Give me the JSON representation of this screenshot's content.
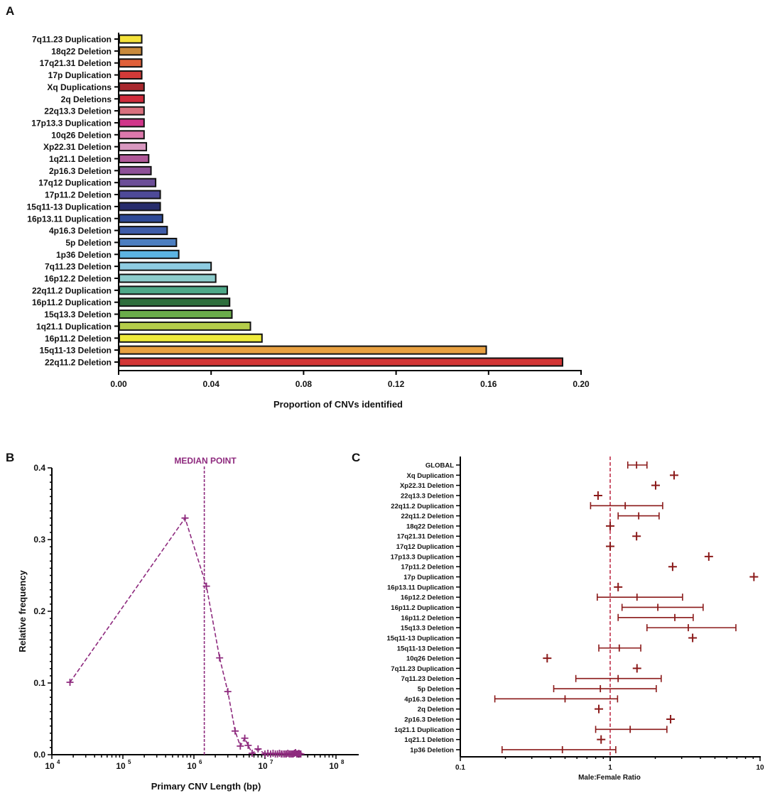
{
  "chart_data": [
    {
      "panel": "A",
      "type": "bar",
      "orientation": "horizontal",
      "xlabel": "Proportion of CNVs identified",
      "xlim": [
        0,
        0.2
      ],
      "xticks": [
        "0.00",
        "0.04",
        "0.08",
        "0.12",
        "0.16",
        "0.20"
      ],
      "categories": [
        "7q11.23 Duplication",
        "18q22 Deletion",
        "17q21.31 Deletion",
        "17p Duplication",
        "Xq Duplications",
        "2q Deletions",
        "22q13.3 Deletion",
        "17p13.3 Duplication",
        "10q26 Deletion",
        "Xp22.31 Deletion",
        "1q21.1 Deletion",
        "2p16.3 Deletion",
        "17q12 Duplication",
        "17p11.2 Deletion",
        "15q11-13 Duplication",
        "16p13.11 Duplication",
        "4p16.3 Deletion",
        "5p Deletion",
        "1p36 Deletion",
        "7q11.23 Deletion",
        "16p12.2 Deletion",
        "22q11.2 Duplication",
        "16p11.2 Duplication",
        "15q13.3 Deletion",
        "1q21.1 Duplication",
        "16p11.2 Deletion",
        "15q11-13 Deletion",
        "22q11.2 Deletion"
      ],
      "values": [
        0.01,
        0.01,
        0.01,
        0.01,
        0.011,
        0.011,
        0.011,
        0.011,
        0.011,
        0.012,
        0.013,
        0.014,
        0.016,
        0.018,
        0.018,
        0.019,
        0.021,
        0.025,
        0.026,
        0.04,
        0.042,
        0.047,
        0.048,
        0.049,
        0.057,
        0.062,
        0.159,
        0.192
      ],
      "colors": [
        "#f4e23a",
        "#c98a3c",
        "#e0603a",
        "#d23a38",
        "#a8282e",
        "#d02a3a",
        "#d8707e",
        "#d0358a",
        "#dc78ac",
        "#d898c0",
        "#b05898",
        "#8e5098",
        "#6c4e98",
        "#4e4a98",
        "#262c6c",
        "#2e4a96",
        "#3e5ca8",
        "#4c7ec0",
        "#5cb4e2",
        "#8ecce2",
        "#8ccccc",
        "#4ea888",
        "#2e6e3c",
        "#6aac4a",
        "#b4cc4a",
        "#eeea3a",
        "#e8a040",
        "#d23434"
      ]
    },
    {
      "panel": "B",
      "type": "line",
      "xscale": "log",
      "xlabel": "Primary CNV Length (bp)",
      "ylabel": "Relative frequency",
      "xlim": [
        10000,
        200000000
      ],
      "ylim": [
        0,
        0.4
      ],
      "xticks": [
        "10",
        "10",
        "10",
        "10",
        "10"
      ],
      "xtick_exponents": [
        "4",
        "5",
        "6",
        "7",
        "8"
      ],
      "yticks": [
        "0.0",
        "0.1",
        "0.2",
        "0.3",
        "0.4"
      ],
      "annotation": "MEDIAN POINT",
      "median_x": 1400000,
      "color": "#8e2a7e",
      "x": [
        18000,
        750000,
        1500000,
        2300000,
        3000000,
        3800000,
        4500000,
        5200000,
        5800000,
        6600000,
        8000000,
        10000000,
        11000000,
        12000000,
        13000000,
        14000000,
        15000000,
        16000000,
        17000000,
        18000000,
        19000000,
        20000000,
        21000000,
        22000000,
        23000000,
        24000000,
        25000000,
        26000000,
        27000000,
        28000000,
        29000000,
        30000000,
        31000000,
        32000000
      ],
      "y": [
        0.101,
        0.33,
        0.235,
        0.135,
        0.088,
        0.033,
        0.012,
        0.023,
        0.013,
        0.002,
        0.008,
        0.001,
        0.002,
        0.001,
        0.002,
        0.001,
        0.001,
        0.002,
        0.001,
        0.001,
        0.001,
        0.001,
        0.002,
        0.001,
        0.001,
        0.001,
        0.001,
        0.002,
        0.003,
        0.001,
        0.001,
        0.002,
        0.001,
        0.001
      ]
    },
    {
      "panel": "C",
      "type": "scatter",
      "xscale": "log",
      "xlabel": "Male:Female Ratio",
      "xlim": [
        0.1,
        10
      ],
      "xticks": [
        "0.1",
        "1",
        "10"
      ],
      "reference_line": 1,
      "color": "#8b1a1a",
      "categories": [
        "GLOBAL",
        "Xq Duplication",
        "Xp22.31 Deletion",
        "22q13.3 Deletion",
        "22q11.2 Duplication",
        "22q11.2 Deletion",
        "18q22 Deletion",
        "17q21.31 Deletion",
        "17q12 Duplication",
        "17p13.3 Duplication",
        "17p11.2 Deletion",
        "17p Duplication",
        "16p13.11 Duplication",
        "16p12.2 Deletion",
        "16p11.2 Duplication",
        "16p11.2 Deletion",
        "15q13.3 Deletion",
        "15q11-13 Duplication",
        "15q11-13 Deletion",
        "10q26 Deletion",
        "7q11.23 Duplication",
        "7q11.23 Deletion",
        "5p Deletion",
        "4p16.3 Deletion",
        "2q Deletion",
        "2p16.3 Deletion",
        "1q21.1 Duplication",
        "1q21.1 Deletion",
        "1p36 Deletion"
      ],
      "values": [
        1.5,
        2.67,
        2.01,
        0.83,
        1.26,
        1.55,
        1.0,
        1.5,
        1.0,
        4.55,
        2.61,
        9.1,
        1.13,
        1.51,
        2.08,
        2.7,
        3.32,
        3.55,
        1.15,
        0.38,
        1.51,
        1.13,
        0.86,
        0.5,
        0.84,
        2.53,
        1.36,
        0.87,
        0.48
      ],
      "ci_low": [
        1.31,
        null,
        null,
        null,
        0.74,
        1.13,
        null,
        null,
        null,
        null,
        null,
        null,
        null,
        0.82,
        1.2,
        1.13,
        1.76,
        null,
        0.84,
        null,
        null,
        0.59,
        0.42,
        0.17,
        null,
        null,
        0.8,
        null,
        0.19
      ],
      "ci_high": [
        1.76,
        null,
        null,
        null,
        2.24,
        2.12,
        null,
        null,
        null,
        null,
        null,
        null,
        null,
        3.04,
        4.17,
        3.58,
        6.9,
        null,
        1.6,
        null,
        null,
        2.19,
        2.03,
        1.12,
        null,
        null,
        2.39,
        null,
        1.09
      ]
    }
  ],
  "panel_labels": [
    "A",
    "B",
    "C"
  ]
}
